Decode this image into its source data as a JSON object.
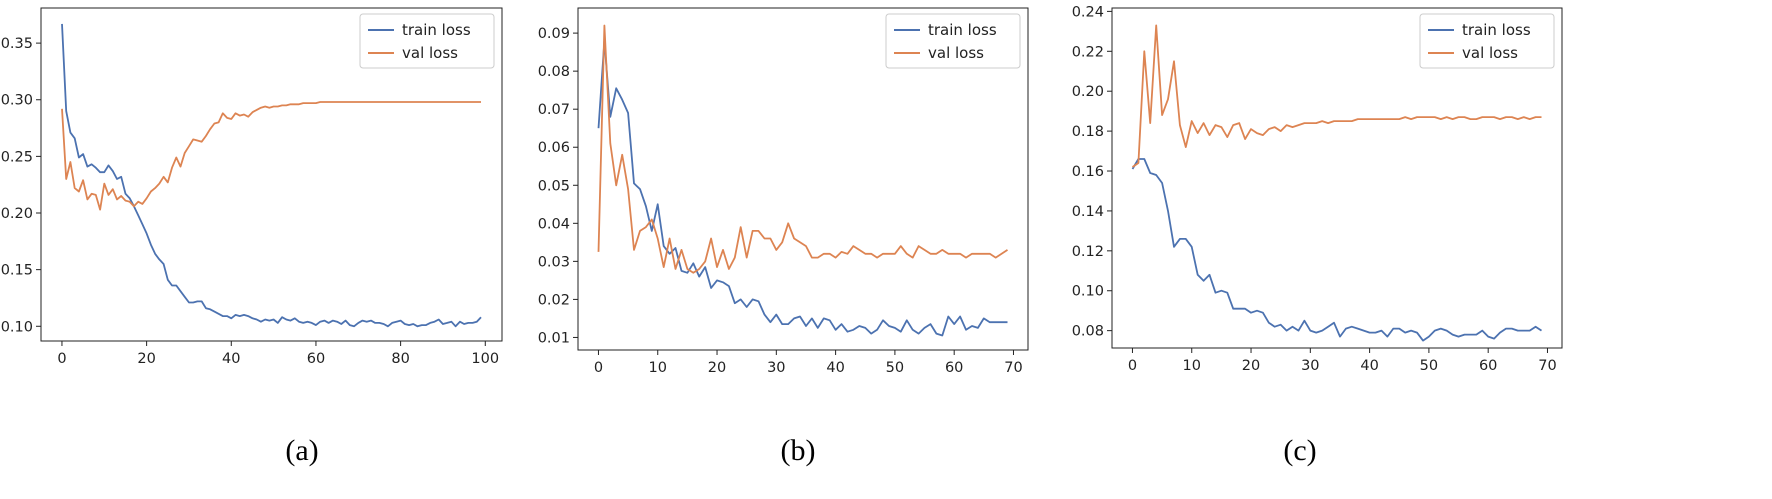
{
  "chart_data": [
    {
      "type": "line",
      "caption": "(a)",
      "xlim": [
        -4.95,
        103.95
      ],
      "ylim": [
        0.087,
        0.381
      ],
      "xticks": [
        0,
        20,
        40,
        60,
        80,
        100
      ],
      "yticks": [
        0.1,
        0.15,
        0.2,
        0.25,
        0.3,
        0.35
      ],
      "ytick_decimals": 2,
      "legend": "top-right",
      "grid": false,
      "series": [
        {
          "name": "train loss",
          "color": "#4c72b0",
          "x_start": 0,
          "values": [
            0.367,
            0.29,
            0.271,
            0.266,
            0.249,
            0.252,
            0.241,
            0.243,
            0.24,
            0.236,
            0.236,
            0.242,
            0.237,
            0.23,
            0.232,
            0.217,
            0.213,
            0.206,
            0.198,
            0.19,
            0.182,
            0.172,
            0.164,
            0.159,
            0.155,
            0.141,
            0.136,
            0.136,
            0.131,
            0.126,
            0.121,
            0.121,
            0.122,
            0.122,
            0.116,
            0.115,
            0.113,
            0.111,
            0.109,
            0.109,
            0.107,
            0.11,
            0.109,
            0.11,
            0.109,
            0.107,
            0.106,
            0.104,
            0.106,
            0.105,
            0.106,
            0.103,
            0.108,
            0.106,
            0.105,
            0.107,
            0.104,
            0.103,
            0.104,
            0.103,
            0.101,
            0.104,
            0.105,
            0.103,
            0.105,
            0.104,
            0.102,
            0.105,
            0.101,
            0.1,
            0.103,
            0.105,
            0.104,
            0.105,
            0.103,
            0.103,
            0.102,
            0.1,
            0.103,
            0.104,
            0.105,
            0.102,
            0.101,
            0.102,
            0.1,
            0.101,
            0.101,
            0.103,
            0.104,
            0.106,
            0.102,
            0.103,
            0.104,
            0.1,
            0.104,
            0.102,
            0.103,
            0.103,
            0.104,
            0.108
          ]
        },
        {
          "name": "val loss",
          "color": "#dd8452",
          "x_start": 0,
          "values": [
            0.292,
            0.23,
            0.245,
            0.222,
            0.219,
            0.229,
            0.212,
            0.217,
            0.216,
            0.203,
            0.226,
            0.216,
            0.221,
            0.212,
            0.215,
            0.211,
            0.21,
            0.206,
            0.21,
            0.208,
            0.213,
            0.219,
            0.222,
            0.226,
            0.232,
            0.227,
            0.24,
            0.249,
            0.241,
            0.253,
            0.259,
            0.265,
            0.264,
            0.263,
            0.268,
            0.274,
            0.279,
            0.28,
            0.288,
            0.284,
            0.283,
            0.288,
            0.286,
            0.287,
            0.285,
            0.289,
            0.291,
            0.293,
            0.294,
            0.293,
            0.294,
            0.294,
            0.295,
            0.295,
            0.296,
            0.296,
            0.296,
            0.297,
            0.297,
            0.297,
            0.297,
            0.298,
            0.298,
            0.298,
            0.298,
            0.298,
            0.298,
            0.298,
            0.298,
            0.298,
            0.298,
            0.298,
            0.298,
            0.298,
            0.298,
            0.298,
            0.298,
            0.298,
            0.298,
            0.298,
            0.298,
            0.298,
            0.298,
            0.298,
            0.298,
            0.298,
            0.298,
            0.298,
            0.298,
            0.298,
            0.298,
            0.298,
            0.298,
            0.298,
            0.298,
            0.298,
            0.298,
            0.298,
            0.298,
            0.298
          ]
        }
      ]
    },
    {
      "type": "line",
      "caption": "(b)",
      "xlim": [
        -3.45,
        72.45
      ],
      "ylim": [
        0.0067,
        0.0966
      ],
      "xticks": [
        0,
        10,
        20,
        30,
        40,
        50,
        60,
        70
      ],
      "yticks": [
        0.01,
        0.02,
        0.03,
        0.04,
        0.05,
        0.06,
        0.07,
        0.08,
        0.09
      ],
      "ytick_decimals": 2,
      "legend": "top-right",
      "grid": false,
      "series": [
        {
          "name": "train loss",
          "color": "#4c72b0",
          "x_start": 0,
          "values": [
            0.065,
            0.088,
            0.068,
            0.0755,
            0.0725,
            0.069,
            0.0505,
            0.049,
            0.0445,
            0.038,
            0.045,
            0.034,
            0.032,
            0.0335,
            0.0275,
            0.027,
            0.0295,
            0.026,
            0.0285,
            0.023,
            0.025,
            0.0245,
            0.0235,
            0.019,
            0.02,
            0.018,
            0.02,
            0.0195,
            0.016,
            0.014,
            0.016,
            0.0135,
            0.0135,
            0.015,
            0.0155,
            0.013,
            0.015,
            0.0125,
            0.015,
            0.0145,
            0.012,
            0.0135,
            0.0115,
            0.012,
            0.013,
            0.0125,
            0.011,
            0.012,
            0.0145,
            0.013,
            0.0125,
            0.0115,
            0.0145,
            0.012,
            0.011,
            0.0125,
            0.0135,
            0.011,
            0.0105,
            0.0155,
            0.0135,
            0.0155,
            0.012,
            0.013,
            0.0125,
            0.015,
            0.014,
            0.014,
            0.014,
            0.014
          ]
        },
        {
          "name": "val loss",
          "color": "#dd8452",
          "x_start": 0,
          "values": [
            0.0325,
            0.092,
            0.061,
            0.05,
            0.058,
            0.049,
            0.033,
            0.038,
            0.039,
            0.041,
            0.036,
            0.0285,
            0.036,
            0.028,
            0.033,
            0.028,
            0.027,
            0.028,
            0.03,
            0.036,
            0.0285,
            0.033,
            0.028,
            0.031,
            0.039,
            0.031,
            0.038,
            0.038,
            0.036,
            0.036,
            0.033,
            0.035,
            0.04,
            0.036,
            0.035,
            0.034,
            0.031,
            0.031,
            0.032,
            0.032,
            0.031,
            0.0325,
            0.032,
            0.034,
            0.033,
            0.032,
            0.032,
            0.031,
            0.032,
            0.032,
            0.032,
            0.034,
            0.032,
            0.031,
            0.034,
            0.033,
            0.032,
            0.032,
            0.033,
            0.032,
            0.032,
            0.032,
            0.031,
            0.032,
            0.032,
            0.032,
            0.032,
            0.031,
            0.032,
            0.033
          ]
        }
      ]
    },
    {
      "type": "line",
      "caption": "(c)",
      "xlim": [
        -3.45,
        72.45
      ],
      "ylim": [
        0.0713,
        0.2417
      ],
      "xticks": [
        0,
        10,
        20,
        30,
        40,
        50,
        60,
        70
      ],
      "yticks": [
        0.08,
        0.1,
        0.12,
        0.14,
        0.16,
        0.18,
        0.2,
        0.22,
        0.24
      ],
      "ytick_decimals": 2,
      "legend": "top-right",
      "grid": false,
      "series": [
        {
          "name": "train loss",
          "color": "#4c72b0",
          "x_start": 0,
          "values": [
            0.161,
            0.166,
            0.166,
            0.159,
            0.158,
            0.154,
            0.14,
            0.122,
            0.126,
            0.126,
            0.122,
            0.108,
            0.105,
            0.108,
            0.099,
            0.1,
            0.099,
            0.091,
            0.091,
            0.091,
            0.089,
            0.09,
            0.089,
            0.084,
            0.082,
            0.083,
            0.08,
            0.082,
            0.08,
            0.085,
            0.08,
            0.079,
            0.08,
            0.082,
            0.084,
            0.077,
            0.081,
            0.082,
            0.081,
            0.08,
            0.079,
            0.079,
            0.08,
            0.077,
            0.081,
            0.081,
            0.079,
            0.08,
            0.079,
            0.075,
            0.077,
            0.08,
            0.081,
            0.08,
            0.078,
            0.077,
            0.078,
            0.078,
            0.078,
            0.08,
            0.077,
            0.076,
            0.079,
            0.081,
            0.081,
            0.08,
            0.08,
            0.08,
            0.082,
            0.08
          ]
        },
        {
          "name": "val loss",
          "color": "#dd8452",
          "x_start": 0,
          "values": [
            0.162,
            0.164,
            0.22,
            0.184,
            0.233,
            0.188,
            0.196,
            0.215,
            0.183,
            0.172,
            0.185,
            0.179,
            0.184,
            0.178,
            0.183,
            0.182,
            0.177,
            0.183,
            0.184,
            0.176,
            0.181,
            0.179,
            0.178,
            0.181,
            0.182,
            0.18,
            0.183,
            0.182,
            0.183,
            0.184,
            0.184,
            0.184,
            0.185,
            0.184,
            0.185,
            0.185,
            0.185,
            0.185,
            0.186,
            0.186,
            0.186,
            0.186,
            0.186,
            0.186,
            0.186,
            0.186,
            0.187,
            0.186,
            0.187,
            0.187,
            0.187,
            0.187,
            0.186,
            0.187,
            0.186,
            0.187,
            0.187,
            0.186,
            0.186,
            0.187,
            0.187,
            0.187,
            0.186,
            0.187,
            0.187,
            0.186,
            0.187,
            0.186,
            0.187,
            0.187
          ]
        }
      ]
    }
  ]
}
